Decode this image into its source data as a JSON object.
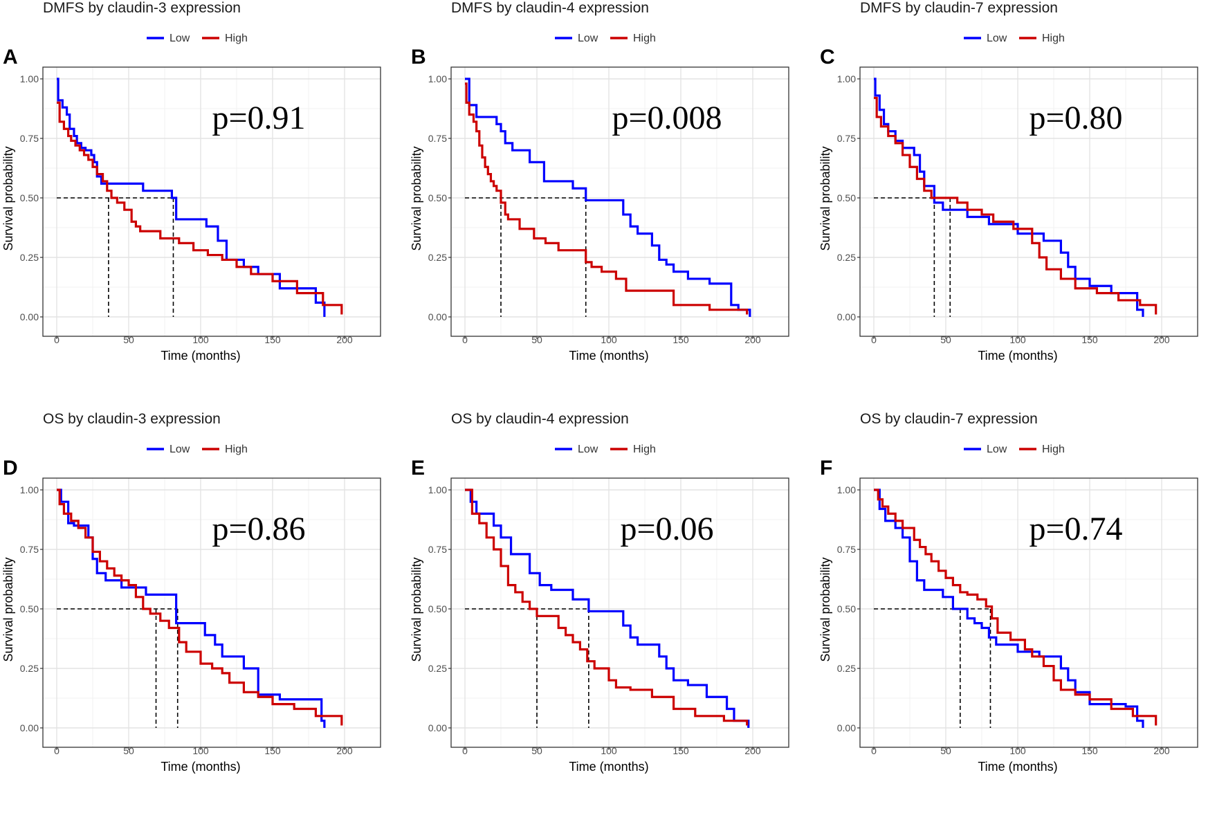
{
  "chart_data": [
    {
      "id": "A",
      "type": "line",
      "title": "DMFS by claudin-3 expression",
      "panel_label": "A",
      "xlabel": "Time (months)",
      "ylabel": "Survival probability",
      "xlim": [
        0,
        200
      ],
      "ylim": [
        0,
        1
      ],
      "xticks": [
        "0",
        "50",
        "100",
        "150",
        "200"
      ],
      "yticks": [
        "0.00",
        "0.25",
        "0.50",
        "0.75",
        "1.00"
      ],
      "grid": true,
      "legend_position": "top",
      "annotation": "p=0.91",
      "median_lines": [
        36,
        81
      ],
      "series": [
        {
          "name": "Low",
          "color": "#0000ff",
          "x": [
            0,
            1,
            4,
            7,
            9,
            12,
            14,
            17,
            20,
            24,
            26,
            28,
            31,
            34,
            37,
            60,
            67,
            80,
            83,
            104,
            112,
            118,
            125,
            130,
            140,
            155,
            180,
            186
          ],
          "y": [
            1.0,
            0.91,
            0.88,
            0.85,
            0.79,
            0.76,
            0.73,
            0.71,
            0.7,
            0.68,
            0.65,
            0.59,
            0.56,
            0.56,
            0.56,
            0.53,
            0.53,
            0.5,
            0.41,
            0.38,
            0.32,
            0.24,
            0.24,
            0.21,
            0.18,
            0.12,
            0.06,
            0.0
          ]
        },
        {
          "name": "High",
          "color": "#cc0000",
          "x": [
            0,
            2,
            5,
            8,
            10,
            13,
            16,
            19,
            22,
            25,
            28,
            32,
            35,
            38,
            42,
            47,
            52,
            55,
            58,
            72,
            80,
            85,
            95,
            105,
            115,
            125,
            135,
            150,
            167,
            185,
            198
          ],
          "y": [
            0.9,
            0.82,
            0.79,
            0.76,
            0.74,
            0.72,
            0.7,
            0.68,
            0.66,
            0.63,
            0.6,
            0.57,
            0.53,
            0.5,
            0.48,
            0.45,
            0.4,
            0.38,
            0.36,
            0.33,
            0.33,
            0.31,
            0.28,
            0.26,
            0.24,
            0.21,
            0.18,
            0.15,
            0.1,
            0.05,
            0.01
          ]
        }
      ]
    },
    {
      "id": "B",
      "type": "line",
      "title": "DMFS by claudin-4 expression",
      "panel_label": "B",
      "xlabel": "Time (months)",
      "ylabel": "Survival probability",
      "xlim": [
        0,
        200
      ],
      "ylim": [
        0,
        1
      ],
      "xticks": [
        "0",
        "50",
        "100",
        "150",
        "200"
      ],
      "yticks": [
        "0.00",
        "0.25",
        "0.50",
        "0.75",
        "1.00"
      ],
      "grid": true,
      "legend_position": "top",
      "annotation": "p=0.008",
      "median_lines": [
        25,
        84
      ],
      "series": [
        {
          "name": "Low",
          "color": "#0000ff",
          "x": [
            0,
            3,
            8,
            22,
            25,
            28,
            33,
            45,
            55,
            75,
            84,
            110,
            115,
            120,
            130,
            135,
            140,
            145,
            155,
            170,
            185,
            190,
            198
          ],
          "y": [
            1.0,
            0.89,
            0.84,
            0.81,
            0.78,
            0.73,
            0.7,
            0.65,
            0.57,
            0.54,
            0.49,
            0.43,
            0.38,
            0.35,
            0.3,
            0.24,
            0.22,
            0.19,
            0.16,
            0.14,
            0.05,
            0.03,
            0.0
          ]
        },
        {
          "name": "High",
          "color": "#cc0000",
          "x": [
            0,
            1,
            3,
            6,
            8,
            10,
            12,
            14,
            16,
            18,
            20,
            22,
            25,
            28,
            30,
            38,
            48,
            56,
            65,
            84,
            88,
            95,
            105,
            112,
            125,
            145,
            170,
            196
          ],
          "y": [
            0.98,
            0.9,
            0.85,
            0.82,
            0.78,
            0.72,
            0.67,
            0.63,
            0.6,
            0.57,
            0.55,
            0.53,
            0.48,
            0.43,
            0.41,
            0.37,
            0.33,
            0.31,
            0.28,
            0.23,
            0.21,
            0.19,
            0.16,
            0.11,
            0.11,
            0.05,
            0.03,
            0.01
          ]
        }
      ]
    },
    {
      "id": "C",
      "type": "line",
      "title": "DMFS by claudin-7 expression",
      "panel_label": "C",
      "xlabel": "Time (months)",
      "ylabel": "Survival probability",
      "xlim": [
        0,
        200
      ],
      "ylim": [
        0,
        1
      ],
      "xticks": [
        "0",
        "50",
        "100",
        "150",
        "200"
      ],
      "yticks": [
        "0.00",
        "0.25",
        "0.50",
        "0.75",
        "1.00"
      ],
      "grid": true,
      "legend_position": "top",
      "annotation": "p=0.80",
      "median_lines": [
        42,
        53
      ],
      "series": [
        {
          "name": "Low",
          "color": "#0000ff",
          "x": [
            0,
            1,
            4,
            7,
            10,
            15,
            20,
            28,
            32,
            35,
            42,
            48,
            55,
            65,
            80,
            100,
            118,
            130,
            135,
            140,
            150,
            165,
            183,
            187
          ],
          "y": [
            1.0,
            0.93,
            0.87,
            0.81,
            0.78,
            0.74,
            0.71,
            0.68,
            0.61,
            0.55,
            0.48,
            0.45,
            0.45,
            0.42,
            0.39,
            0.35,
            0.32,
            0.27,
            0.21,
            0.16,
            0.13,
            0.1,
            0.03,
            0.0
          ]
        },
        {
          "name": "High",
          "color": "#cc0000",
          "x": [
            0,
            2,
            5,
            10,
            15,
            20,
            25,
            30,
            35,
            40,
            45,
            58,
            65,
            75,
            83,
            97,
            110,
            115,
            120,
            130,
            140,
            155,
            170,
            185,
            196
          ],
          "y": [
            0.92,
            0.84,
            0.8,
            0.76,
            0.73,
            0.68,
            0.63,
            0.58,
            0.53,
            0.5,
            0.5,
            0.48,
            0.45,
            0.43,
            0.4,
            0.37,
            0.31,
            0.25,
            0.2,
            0.16,
            0.12,
            0.1,
            0.07,
            0.05,
            0.01
          ]
        }
      ]
    },
    {
      "id": "D",
      "type": "line",
      "title": "OS by claudin-3 expression",
      "panel_label": "D",
      "xlabel": "Time (months)",
      "ylabel": "Survival probability",
      "xlim": [
        0,
        200
      ],
      "ylim": [
        0,
        1
      ],
      "xticks": [
        "0",
        "50",
        "100",
        "150",
        "200"
      ],
      "yticks": [
        "0.00",
        "0.25",
        "0.50",
        "0.75",
        "1.00"
      ],
      "grid": true,
      "legend_position": "top",
      "annotation": "p=0.86",
      "median_lines": [
        69,
        84
      ],
      "series": [
        {
          "name": "Low",
          "color": "#0000ff",
          "x": [
            0,
            3,
            8,
            12,
            22,
            25,
            28,
            34,
            45,
            62,
            83,
            103,
            110,
            115,
            130,
            140,
            155,
            175,
            184,
            186
          ],
          "y": [
            1.0,
            0.95,
            0.86,
            0.85,
            0.8,
            0.71,
            0.65,
            0.62,
            0.59,
            0.56,
            0.44,
            0.39,
            0.35,
            0.3,
            0.25,
            0.14,
            0.12,
            0.12,
            0.03,
            0.0
          ]
        },
        {
          "name": "High",
          "color": "#cc0000",
          "x": [
            0,
            2,
            5,
            10,
            15,
            20,
            25,
            30,
            35,
            40,
            45,
            50,
            55,
            60,
            65,
            72,
            78,
            85,
            90,
            100,
            108,
            115,
            120,
            130,
            140,
            150,
            165,
            180,
            198
          ],
          "y": [
            1.0,
            0.94,
            0.9,
            0.87,
            0.84,
            0.8,
            0.74,
            0.7,
            0.67,
            0.64,
            0.62,
            0.6,
            0.55,
            0.5,
            0.48,
            0.45,
            0.42,
            0.36,
            0.32,
            0.27,
            0.25,
            0.23,
            0.19,
            0.15,
            0.13,
            0.1,
            0.08,
            0.05,
            0.01
          ]
        }
      ]
    },
    {
      "id": "E",
      "type": "line",
      "title": "OS by claudin-4 expression",
      "panel_label": "E",
      "xlabel": "Time (months)",
      "ylabel": "Survival probability",
      "xlim": [
        0,
        200
      ],
      "ylim": [
        0,
        1
      ],
      "xticks": [
        "0",
        "50",
        "100",
        "150",
        "200"
      ],
      "yticks": [
        "0.00",
        "0.25",
        "0.50",
        "0.75",
        "1.00"
      ],
      "grid": true,
      "legend_position": "top",
      "annotation": "p=0.06",
      "median_lines": [
        50,
        86
      ],
      "series": [
        {
          "name": "Low",
          "color": "#0000ff",
          "x": [
            0,
            4,
            8,
            20,
            25,
            32,
            45,
            52,
            60,
            75,
            86,
            110,
            115,
            120,
            135,
            140,
            145,
            155,
            168,
            182,
            187,
            197
          ],
          "y": [
            1.0,
            0.95,
            0.9,
            0.85,
            0.8,
            0.73,
            0.65,
            0.6,
            0.58,
            0.54,
            0.49,
            0.43,
            0.38,
            0.35,
            0.3,
            0.25,
            0.2,
            0.18,
            0.13,
            0.08,
            0.03,
            0.0
          ]
        },
        {
          "name": "High",
          "color": "#cc0000",
          "x": [
            0,
            5,
            10,
            15,
            20,
            25,
            30,
            35,
            40,
            45,
            50,
            55,
            65,
            70,
            75,
            80,
            85,
            90,
            100,
            105,
            115,
            130,
            145,
            160,
            180,
            196
          ],
          "y": [
            1.0,
            0.9,
            0.86,
            0.8,
            0.75,
            0.68,
            0.6,
            0.57,
            0.53,
            0.5,
            0.47,
            0.47,
            0.42,
            0.39,
            0.36,
            0.33,
            0.28,
            0.25,
            0.2,
            0.17,
            0.16,
            0.13,
            0.08,
            0.05,
            0.03,
            0.01
          ]
        }
      ]
    },
    {
      "id": "F",
      "type": "line",
      "title": "OS by claudin-7 expression",
      "panel_label": "F",
      "xlabel": "Time (months)",
      "ylabel": "Survival probability",
      "xlim": [
        0,
        200
      ],
      "ylim": [
        0,
        1
      ],
      "xticks": [
        "0",
        "50",
        "100",
        "150",
        "200"
      ],
      "yticks": [
        "0.00",
        "0.25",
        "0.50",
        "0.75",
        "1.00"
      ],
      "grid": true,
      "legend_position": "top",
      "annotation": "p=0.74",
      "median_lines": [
        60,
        81
      ],
      "series": [
        {
          "name": "Low",
          "color": "#0000ff",
          "x": [
            0,
            4,
            8,
            15,
            20,
            25,
            30,
            35,
            48,
            55,
            65,
            70,
            75,
            80,
            85,
            100,
            115,
            130,
            135,
            140,
            150,
            175,
            183,
            187
          ],
          "y": [
            1.0,
            0.92,
            0.87,
            0.84,
            0.8,
            0.7,
            0.62,
            0.58,
            0.55,
            0.5,
            0.46,
            0.44,
            0.42,
            0.38,
            0.35,
            0.32,
            0.3,
            0.25,
            0.2,
            0.15,
            0.1,
            0.09,
            0.03,
            0.0
          ]
        },
        {
          "name": "High",
          "color": "#cc0000",
          "x": [
            0,
            3,
            6,
            10,
            15,
            20,
            28,
            32,
            36,
            40,
            45,
            50,
            55,
            60,
            65,
            72,
            78,
            82,
            86,
            95,
            105,
            110,
            118,
            125,
            130,
            140,
            150,
            165,
            180,
            196
          ],
          "y": [
            1.0,
            0.96,
            0.93,
            0.9,
            0.87,
            0.84,
            0.79,
            0.76,
            0.73,
            0.7,
            0.66,
            0.63,
            0.6,
            0.57,
            0.56,
            0.54,
            0.51,
            0.46,
            0.4,
            0.37,
            0.33,
            0.3,
            0.26,
            0.2,
            0.16,
            0.14,
            0.12,
            0.08,
            0.05,
            0.01
          ]
        }
      ]
    }
  ]
}
